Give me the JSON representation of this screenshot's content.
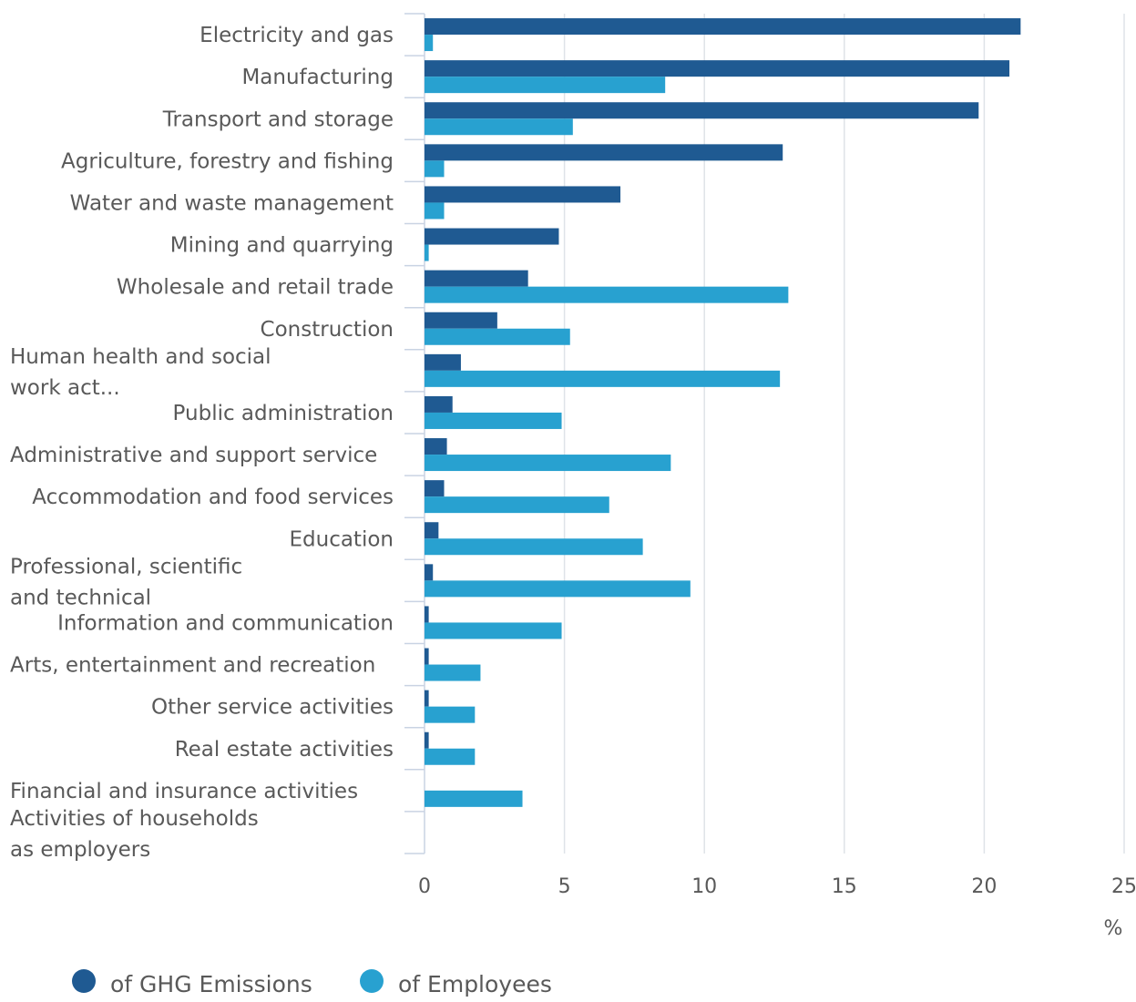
{
  "chart_data": {
    "type": "bar",
    "orientation": "horizontal",
    "categories": [
      "Electricity and gas",
      "Manufacturing",
      "Transport and storage",
      "Agriculture, forestry and fishing",
      "Water and waste management",
      "Mining and quarrying",
      "Wholesale and retail trade",
      "Construction",
      "Human health and social work act...",
      "Public administration",
      "Administrative and support service",
      "Accommodation and food services",
      "Education",
      "Professional, scientific and technical",
      "Information and communication",
      "Arts, entertainment and recreation",
      "Other service activities",
      "Real estate activities",
      "Financial and insurance activities",
      "Activities of households as employers"
    ],
    "series": [
      {
        "name": "of GHG Emissions",
        "color": "#1f5a92",
        "values": [
          21.3,
          20.9,
          19.8,
          12.8,
          7.0,
          4.8,
          3.7,
          2.6,
          1.3,
          1.0,
          0.8,
          0.7,
          0.5,
          0.3,
          0.15,
          0.15,
          0.15,
          0.15,
          0.0,
          0.0
        ]
      },
      {
        "name": "of Employees",
        "color": "#28a1d0",
        "values": [
          0.3,
          8.6,
          5.3,
          0.7,
          0.7,
          0.15,
          13.0,
          5.2,
          12.7,
          4.9,
          8.8,
          6.6,
          7.8,
          9.5,
          4.9,
          2.0,
          1.8,
          1.8,
          3.5,
          0.0
        ]
      }
    ],
    "xlim": [
      0,
      25
    ],
    "xticks": [
      0,
      5,
      10,
      15,
      20,
      25
    ],
    "xunit": "%",
    "grid": true,
    "legend_position": "bottom-left"
  }
}
